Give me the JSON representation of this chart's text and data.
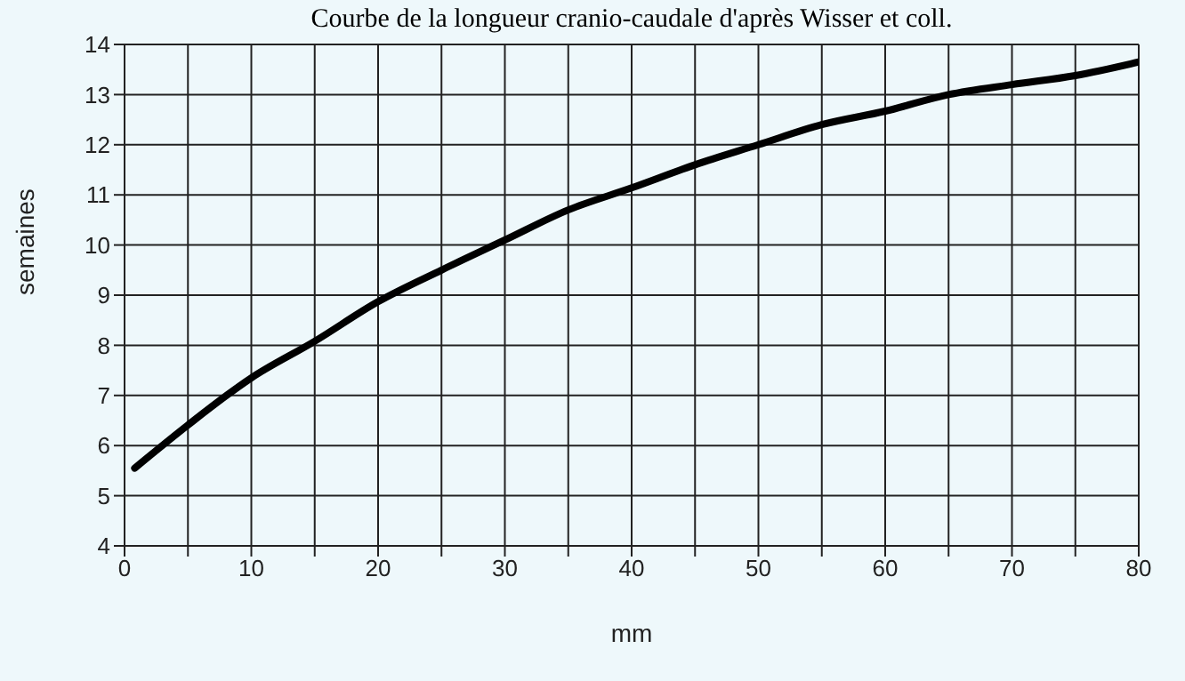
{
  "chart_data": {
    "type": "line",
    "title": "Courbe de la longueur cranio-caudale d'après Wisser et coll.",
    "xlabel": "mm",
    "ylabel": "semaines",
    "x": [
      0.8,
      5,
      10,
      15,
      20,
      25,
      30,
      35,
      40,
      45,
      50,
      55,
      60,
      65,
      70,
      75,
      80
    ],
    "series": [
      {
        "color": "#000000",
        "values": [
          5.55,
          6.41,
          7.35,
          8.08,
          8.87,
          9.5,
          10.1,
          10.7,
          11.14,
          11.6,
          12.0,
          12.4,
          12.67,
          13.0,
          13.2,
          13.38,
          13.65
        ]
      }
    ],
    "xlim": [
      0,
      80
    ],
    "ylim": [
      4,
      14
    ],
    "xticks": [
      0,
      {
        "value": 5,
        "label": null
      },
      10,
      {
        "value": 15,
        "label": null
      },
      20,
      {
        "value": 25,
        "label": null
      },
      30,
      {
        "value": 35,
        "label": null
      },
      40,
      {
        "value": 45,
        "label": null
      },
      50,
      {
        "value": 55,
        "label": null
      },
      60,
      {
        "value": 65,
        "label": null
      },
      70,
      {
        "value": 75,
        "label": null
      },
      80
    ],
    "yticks": [
      4,
      5,
      6,
      7,
      8,
      9,
      10,
      11,
      12,
      13,
      14
    ],
    "grid": true,
    "legend": false,
    "marker": "none",
    "line_style": "solid"
  }
}
